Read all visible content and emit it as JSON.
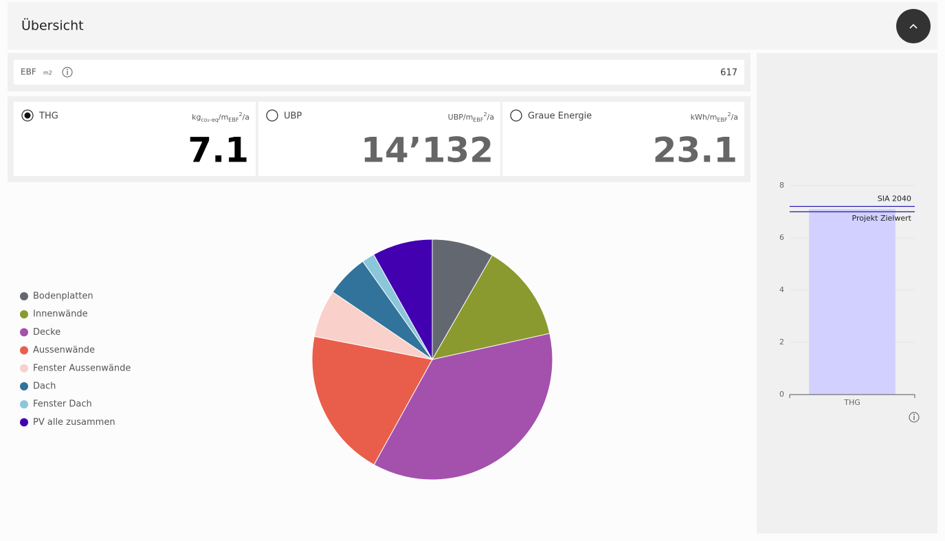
{
  "header": {
    "title": "Übersicht"
  },
  "ebf": {
    "label": "EBF",
    "unit": "m2",
    "value": "617"
  },
  "metrics": [
    {
      "label": "THG",
      "selected": true,
      "value": "7.1",
      "unit": [
        {
          "text": "kg",
          "pos": "base"
        },
        {
          "text": "co₂-eq",
          "pos": "sub"
        },
        {
          "text": "/m",
          "pos": "base"
        },
        {
          "text": "EBF",
          "pos": "sub"
        },
        {
          "text": "2",
          "pos": "sup"
        },
        {
          "text": "/a",
          "pos": "base"
        }
      ]
    },
    {
      "label": "UBP",
      "selected": false,
      "value": "14’132",
      "unit": [
        {
          "text": "UBP/m",
          "pos": "base"
        },
        {
          "text": "EBF",
          "pos": "sub"
        },
        {
          "text": "2",
          "pos": "sup"
        },
        {
          "text": "/a",
          "pos": "base"
        }
      ]
    },
    {
      "label": "Graue Energie",
      "selected": false,
      "value": "23.1",
      "unit": [
        {
          "text": "kWh/m",
          "pos": "base"
        },
        {
          "text": "EBF",
          "pos": "sub"
        },
        {
          "text": "2",
          "pos": "sup"
        },
        {
          "text": "/a",
          "pos": "base"
        }
      ]
    }
  ],
  "chart_data": [
    {
      "type": "pie",
      "legend": "left",
      "categories": [
        "Bodenplatten",
        "Innenwände",
        "Decke",
        "Aussenwände",
        "Fenster Aussenwände",
        "Dach",
        "Fenster Dach",
        "PV alle zusammen"
      ],
      "values": [
        8.3,
        13.2,
        36.5,
        20.0,
        6.4,
        5.7,
        1.7,
        8.1
      ],
      "colors": [
        "#636870",
        "#8a9a2e",
        "#a450ad",
        "#e95e4a",
        "#f9d0ca",
        "#31739a",
        "#8cc6d9",
        "#4200b0"
      ]
    },
    {
      "type": "bar",
      "categories": [
        "THG"
      ],
      "values": [
        7.1
      ],
      "color": "#d2d0ff",
      "ylim": [
        0,
        8
      ],
      "yticks": [
        0,
        2,
        4,
        6,
        8
      ],
      "grid": true,
      "reference_lines": [
        {
          "name": "SIA 2040",
          "value": 7.2,
          "color": "#2b1db5"
        },
        {
          "name": "Projekt Zielwert",
          "value": 7.0,
          "color": "#1f1a8c"
        }
      ]
    }
  ]
}
